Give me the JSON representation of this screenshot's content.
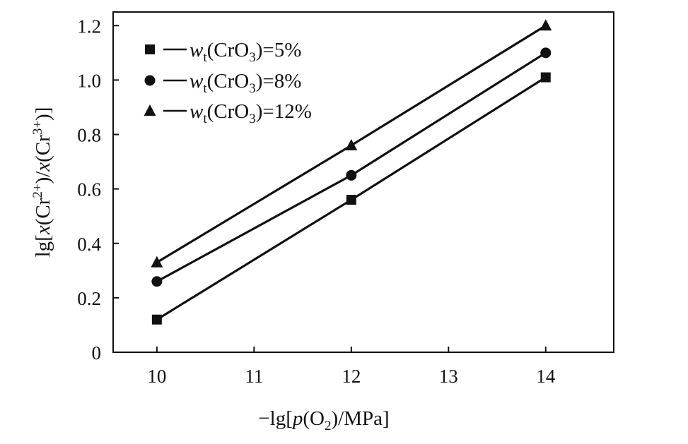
{
  "chart_data": {
    "type": "line",
    "title": "",
    "xlabel": "−lg[p(O2)/MPa]",
    "ylabel": "lg[x(Cr2+)/x(Cr3+)]",
    "x": [
      10,
      12,
      14
    ],
    "xlim": [
      9.55,
      14.7
    ],
    "ylim": [
      0,
      1.25
    ],
    "xticks": [
      "10",
      "11",
      "12",
      "13",
      "14"
    ],
    "yticks": [
      "0",
      "0.2",
      "0.4",
      "0.6",
      "0.8",
      "1.0",
      "1.2"
    ],
    "grid": false,
    "legend_position": "top-left",
    "series": [
      {
        "name": "wt(CrO3)=5%",
        "marker": "square",
        "values": [
          0.12,
          0.56,
          1.01
        ]
      },
      {
        "name": "wt(CrO3)=8%",
        "marker": "circle",
        "values": [
          0.26,
          0.65,
          1.1
        ]
      },
      {
        "name": "wt(CrO3)=12%",
        "marker": "triangle",
        "values": [
          0.33,
          0.76,
          1.2
        ]
      }
    ],
    "colors": {
      "line": "#111111",
      "marker": "#111111",
      "axis": "#111111"
    }
  }
}
